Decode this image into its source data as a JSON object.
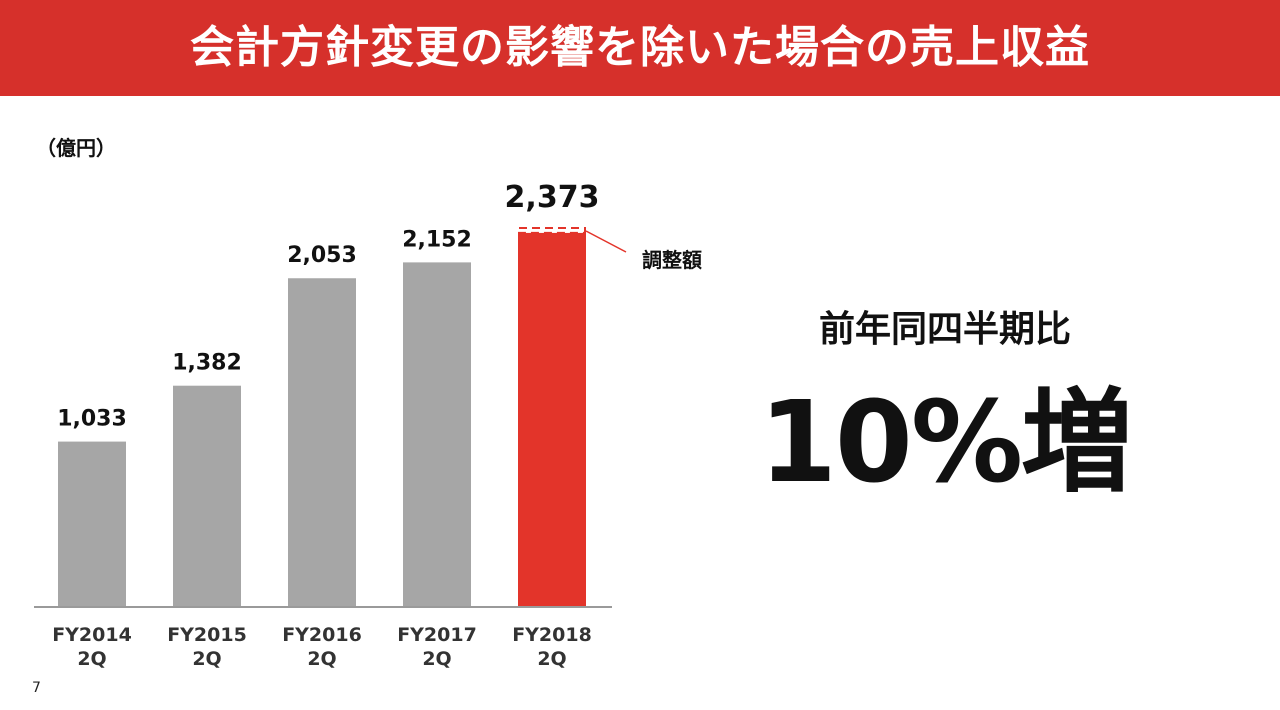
{
  "slide": {
    "title": "会計方針変更の影響を除いた場合の売上収益",
    "page_number": "7"
  },
  "chart_data": {
    "type": "bar",
    "unit_label": "（億円）",
    "categories": [
      [
        "FY2014",
        "2Q"
      ],
      [
        "FY2015",
        "2Q"
      ],
      [
        "FY2016",
        "2Q"
      ],
      [
        "FY2017",
        "2Q"
      ],
      [
        "FY2018",
        "2Q"
      ]
    ],
    "values": [
      1033,
      1382,
      2053,
      2152,
      2373
    ],
    "value_labels": [
      "1,033",
      "1,382",
      "2,053",
      "2,152",
      "2,373"
    ],
    "adjusted_value_last": 2336,
    "colors": [
      "#a6a6a6",
      "#a6a6a6",
      "#a6a6a6",
      "#a6a6a6",
      "#e3342a"
    ],
    "ylim": [
      0,
      2373
    ],
    "callout": "調整額",
    "grid": false,
    "legend": "none"
  },
  "summary": {
    "label": "前年同四半期比",
    "value": "10%増"
  }
}
